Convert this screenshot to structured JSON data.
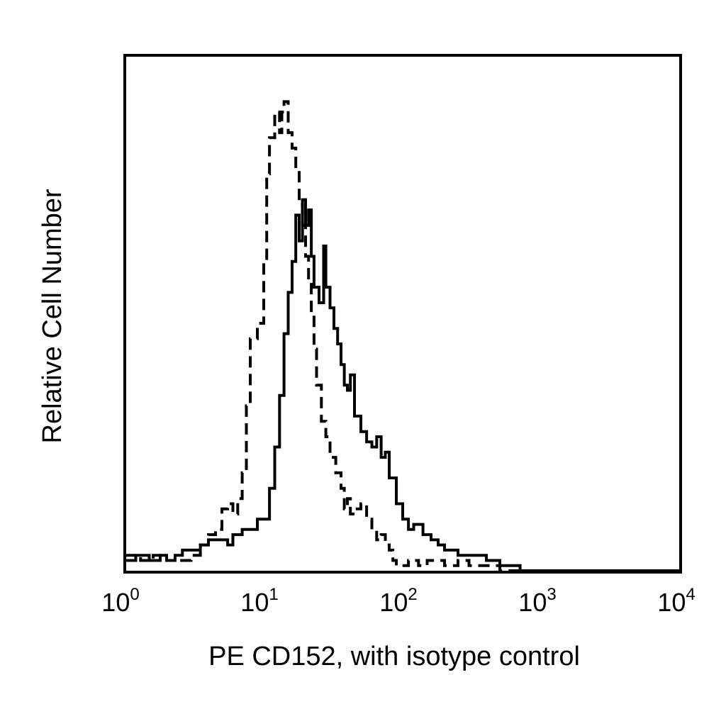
{
  "chart_data": {
    "type": "line",
    "title": "",
    "xlabel": "PE CD152, with isotype control",
    "ylabel": "Relative Cell Number",
    "x_scale": "log",
    "xlim": [
      1,
      10000
    ],
    "ylim": [
      0,
      100
    ],
    "grid": false,
    "legend": "none",
    "x_ticks": [
      {
        "base": "10",
        "exp": "0",
        "value": 1
      },
      {
        "base": "10",
        "exp": "1",
        "value": 10
      },
      {
        "base": "10",
        "exp": "2",
        "value": 100
      },
      {
        "base": "10",
        "exp": "3",
        "value": 1000
      },
      {
        "base": "10",
        "exp": "4",
        "value": 10000
      }
    ],
    "series": [
      {
        "style": "solid",
        "color": "#000000",
        "points": [
          [
            1.0,
            2
          ],
          [
            1.2,
            3
          ],
          [
            1.5,
            2
          ],
          [
            1.8,
            3
          ],
          [
            2.0,
            2
          ],
          [
            2.3,
            3
          ],
          [
            2.6,
            4
          ],
          [
            3.0,
            4
          ],
          [
            3.5,
            5
          ],
          [
            4.0,
            6
          ],
          [
            5.0,
            6
          ],
          [
            5.5,
            5
          ],
          [
            6.0,
            7
          ],
          [
            7.0,
            8
          ],
          [
            8.0,
            8
          ],
          [
            9.0,
            10
          ],
          [
            10.0,
            10
          ],
          [
            11.0,
            16
          ],
          [
            12.0,
            24
          ],
          [
            13.0,
            34
          ],
          [
            14.0,
            46
          ],
          [
            15.0,
            54
          ],
          [
            16.0,
            60
          ],
          [
            17.0,
            69
          ],
          [
            18.0,
            64
          ],
          [
            19.0,
            72
          ],
          [
            20.0,
            67
          ],
          [
            21.0,
            70
          ],
          [
            22.0,
            61
          ],
          [
            23.0,
            55
          ],
          [
            25.0,
            52
          ],
          [
            27.0,
            63
          ],
          [
            28.0,
            55
          ],
          [
            30.0,
            51
          ],
          [
            32.0,
            47
          ],
          [
            34.0,
            44
          ],
          [
            36.0,
            40
          ],
          [
            38.0,
            36
          ],
          [
            40.0,
            35
          ],
          [
            42.0,
            38
          ],
          [
            45.0,
            30
          ],
          [
            50.0,
            27
          ],
          [
            55.0,
            25
          ],
          [
            60.0,
            24
          ],
          [
            65.0,
            26
          ],
          [
            70.0,
            22
          ],
          [
            75.0,
            23
          ],
          [
            80.0,
            18
          ],
          [
            90.0,
            13
          ],
          [
            100.0,
            10
          ],
          [
            110.0,
            8
          ],
          [
            120.0,
            9
          ],
          [
            140.0,
            7
          ],
          [
            160.0,
            6
          ],
          [
            180.0,
            5
          ],
          [
            200.0,
            4
          ],
          [
            250.0,
            3
          ],
          [
            300.0,
            3
          ],
          [
            400.0,
            2
          ],
          [
            500.0,
            1
          ],
          [
            700.0,
            0
          ],
          [
            1000.0,
            0
          ],
          [
            3000.0,
            0
          ],
          [
            10000.0,
            0
          ]
        ]
      },
      {
        "style": "dashed",
        "color": "#000000",
        "points": [
          [
            1.0,
            3
          ],
          [
            1.3,
            2
          ],
          [
            1.6,
            3
          ],
          [
            2.0,
            2
          ],
          [
            2.5,
            2
          ],
          [
            3.0,
            3
          ],
          [
            3.5,
            5
          ],
          [
            4.0,
            7
          ],
          [
            4.5,
            8
          ],
          [
            5.0,
            12
          ],
          [
            5.5,
            13
          ],
          [
            6.0,
            11
          ],
          [
            6.5,
            14
          ],
          [
            7.0,
            19
          ],
          [
            7.5,
            32
          ],
          [
            8.0,
            45
          ],
          [
            9.0,
            48
          ],
          [
            10.0,
            60
          ],
          [
            10.5,
            77
          ],
          [
            11.0,
            84
          ],
          [
            12.0,
            89
          ],
          [
            13.0,
            85
          ],
          [
            13.5,
            89
          ],
          [
            14.0,
            91
          ],
          [
            15.0,
            85
          ],
          [
            16.0,
            82
          ],
          [
            17.0,
            78
          ],
          [
            18.0,
            71
          ],
          [
            19.0,
            67
          ],
          [
            20.0,
            61
          ],
          [
            21.0,
            56
          ],
          [
            22.0,
            50
          ],
          [
            23.0,
            43
          ],
          [
            24.0,
            36
          ],
          [
            26.0,
            29
          ],
          [
            28.0,
            26
          ],
          [
            30.0,
            22
          ],
          [
            33.0,
            19
          ],
          [
            36.0,
            16
          ],
          [
            38.0,
            12
          ],
          [
            40.0,
            14
          ],
          [
            42.0,
            11
          ],
          [
            45.0,
            12
          ],
          [
            50.0,
            13
          ],
          [
            55.0,
            10
          ],
          [
            60.0,
            8
          ],
          [
            65.0,
            6
          ],
          [
            70.0,
            7
          ],
          [
            75.0,
            5
          ],
          [
            80.0,
            4
          ],
          [
            85.0,
            2
          ],
          [
            90.0,
            1
          ],
          [
            110.0,
            2
          ],
          [
            130.0,
            1
          ],
          [
            150.0,
            2
          ],
          [
            170.0,
            2
          ],
          [
            200.0,
            1
          ],
          [
            250.0,
            2
          ],
          [
            300.0,
            1
          ],
          [
            350.0,
            1
          ],
          [
            400.0,
            1
          ],
          [
            500.0,
            0
          ],
          [
            1000.0,
            0
          ],
          [
            10000.0,
            0
          ]
        ]
      }
    ]
  }
}
